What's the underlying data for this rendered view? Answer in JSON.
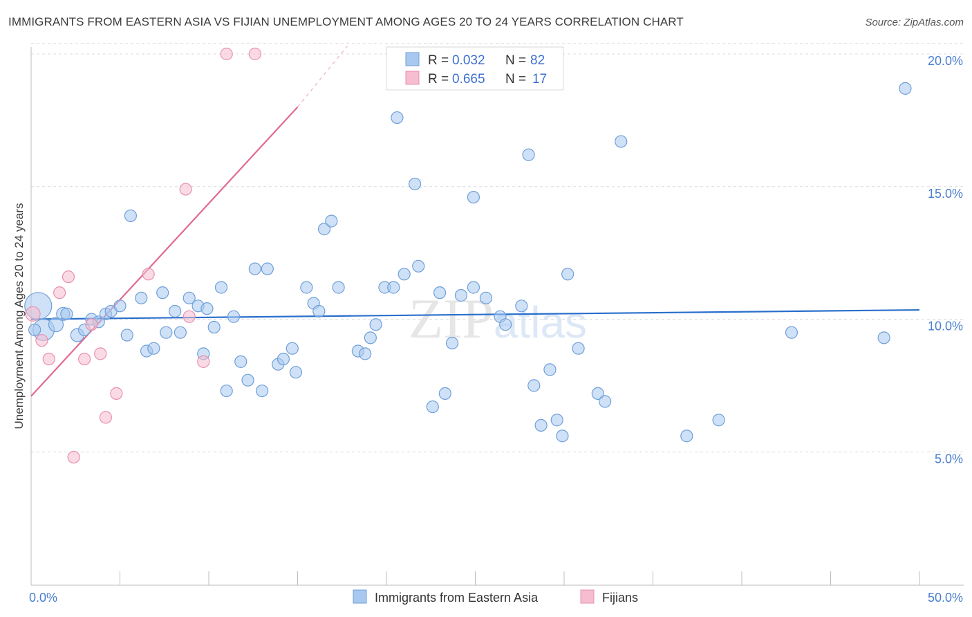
{
  "chart_data": {
    "type": "scatter",
    "title": "IMMIGRANTS FROM EASTERN ASIA VS FIJIAN UNEMPLOYMENT AMONG AGES 20 TO 24 YEARS CORRELATION CHART",
    "source": "Source: ZipAtlas.com",
    "xlabel": "",
    "ylabel": "Unemployment Among Ages 20 to 24 years",
    "xlim": [
      0,
      50
    ],
    "ylim": [
      0,
      20.5
    ],
    "x_tick_labels": [
      "0.0%",
      "50.0%"
    ],
    "y_ticks": [
      5,
      10,
      15,
      20
    ],
    "y_tick_labels": [
      "5.0%",
      "10.0%",
      "15.0%",
      "20.0%"
    ],
    "watermark": "ZIPatlas",
    "legend": [
      {
        "r_label": "R =",
        "r_value": "0.032",
        "n_label": "N =",
        "n_value": "82"
      },
      {
        "r_label": "R =",
        "r_value": "0.665",
        "n_label": "N =",
        "n_value": "17"
      }
    ],
    "series": [
      {
        "name": "Immigrants from Eastern Asia",
        "color": "#a8c8f0",
        "stroke": "#6f9fd8",
        "trend_color": "#2a6fcc",
        "trend": [
          [
            0,
            10.0
          ],
          [
            50,
            10.35
          ]
        ],
        "points": [
          [
            0.4,
            10.5,
            18
          ],
          [
            0.7,
            9.6,
            14
          ],
          [
            1.4,
            9.8,
            9
          ],
          [
            1.8,
            10.2,
            8
          ],
          [
            2.6,
            9.4,
            8
          ],
          [
            3.0,
            9.6,
            7
          ],
          [
            2.0,
            10.2,
            7
          ],
          [
            3.4,
            10.0,
            7
          ],
          [
            3.8,
            9.9,
            7
          ],
          [
            4.2,
            10.2,
            7
          ],
          [
            4.5,
            10.3,
            7
          ],
          [
            5.0,
            10.5,
            7
          ],
          [
            5.4,
            9.4,
            7
          ],
          [
            5.6,
            13.9,
            7
          ],
          [
            6.2,
            10.8,
            7
          ],
          [
            6.5,
            8.8,
            7
          ],
          [
            6.9,
            8.9,
            7
          ],
          [
            7.4,
            11.0,
            7
          ],
          [
            7.6,
            9.5,
            7
          ],
          [
            8.1,
            10.3,
            7
          ],
          [
            8.4,
            9.5,
            7
          ],
          [
            8.9,
            10.8,
            7
          ],
          [
            9.4,
            10.5,
            7
          ],
          [
            9.7,
            8.7,
            7
          ],
          [
            9.9,
            10.4,
            7
          ],
          [
            10.3,
            9.7,
            7
          ],
          [
            10.7,
            11.2,
            7
          ],
          [
            11.0,
            7.3,
            7
          ],
          [
            11.4,
            10.1,
            7
          ],
          [
            11.8,
            8.4,
            7
          ],
          [
            12.2,
            7.7,
            7
          ],
          [
            12.6,
            11.9,
            7
          ],
          [
            13.0,
            7.3,
            7
          ],
          [
            13.3,
            11.9,
            7
          ],
          [
            13.9,
            8.3,
            7
          ],
          [
            14.2,
            8.5,
            7
          ],
          [
            14.7,
            8.9,
            7
          ],
          [
            14.9,
            8.0,
            7
          ],
          [
            15.5,
            11.2,
            7
          ],
          [
            15.9,
            10.6,
            7
          ],
          [
            16.2,
            10.3,
            7
          ],
          [
            16.5,
            13.4,
            7
          ],
          [
            16.9,
            13.7,
            7
          ],
          [
            17.3,
            11.2,
            7
          ],
          [
            18.4,
            8.8,
            7
          ],
          [
            18.8,
            8.7,
            7
          ],
          [
            19.1,
            9.3,
            7
          ],
          [
            19.4,
            9.8,
            7
          ],
          [
            19.9,
            11.2,
            7
          ],
          [
            20.4,
            11.2,
            7
          ],
          [
            20.6,
            17.6,
            7
          ],
          [
            21.0,
            11.7,
            7
          ],
          [
            21.6,
            15.1,
            7
          ],
          [
            21.8,
            12.0,
            7
          ],
          [
            22.6,
            6.7,
            7
          ],
          [
            23.0,
            11.0,
            7
          ],
          [
            23.3,
            7.2,
            7
          ],
          [
            23.7,
            9.1,
            7
          ],
          [
            24.2,
            10.9,
            7
          ],
          [
            24.9,
            11.2,
            7
          ],
          [
            24.9,
            14.6,
            7
          ],
          [
            25.6,
            10.8,
            7
          ],
          [
            26.4,
            10.1,
            7
          ],
          [
            26.7,
            9.8,
            7
          ],
          [
            27.6,
            10.5,
            7
          ],
          [
            28.0,
            16.2,
            7
          ],
          [
            28.3,
            7.5,
            7
          ],
          [
            28.7,
            6.0,
            7
          ],
          [
            29.2,
            8.1,
            7
          ],
          [
            29.6,
            6.2,
            7
          ],
          [
            29.9,
            5.6,
            7
          ],
          [
            30.2,
            11.7,
            7
          ],
          [
            30.8,
            8.9,
            7
          ],
          [
            31.9,
            7.2,
            7
          ],
          [
            32.3,
            6.9,
            7
          ],
          [
            33.2,
            16.7,
            7
          ],
          [
            36.9,
            5.6,
            7
          ],
          [
            38.7,
            6.2,
            7
          ],
          [
            42.8,
            9.5,
            7
          ],
          [
            48.0,
            9.3,
            7
          ],
          [
            49.2,
            18.7,
            7
          ],
          [
            0.2,
            9.6,
            7
          ]
        ]
      },
      {
        "name": "Fijians",
        "color": "#f6bdd0",
        "stroke": "#e890ae",
        "trend_color": "#e06a92",
        "trend": [
          [
            0,
            7.1
          ],
          [
            15,
            18.0
          ]
        ],
        "trend_ext": [
          [
            15,
            18.0
          ],
          [
            17.8,
            20.3
          ]
        ],
        "points": [
          [
            0.1,
            10.2,
            9
          ],
          [
            0.6,
            9.2,
            7
          ],
          [
            1.0,
            8.5,
            7
          ],
          [
            1.6,
            11.0,
            7
          ],
          [
            2.1,
            11.6,
            7
          ],
          [
            2.4,
            4.8,
            7
          ],
          [
            3.0,
            8.5,
            7
          ],
          [
            3.4,
            9.8,
            7
          ],
          [
            3.9,
            8.7,
            7
          ],
          [
            4.2,
            6.3,
            7
          ],
          [
            4.8,
            7.2,
            7
          ],
          [
            6.6,
            11.7,
            7
          ],
          [
            8.7,
            14.9,
            7
          ],
          [
            8.9,
            10.1,
            7
          ],
          [
            9.7,
            8.4,
            7
          ],
          [
            11.0,
            20.0,
            7
          ],
          [
            12.6,
            20.0,
            7
          ]
        ]
      }
    ]
  }
}
